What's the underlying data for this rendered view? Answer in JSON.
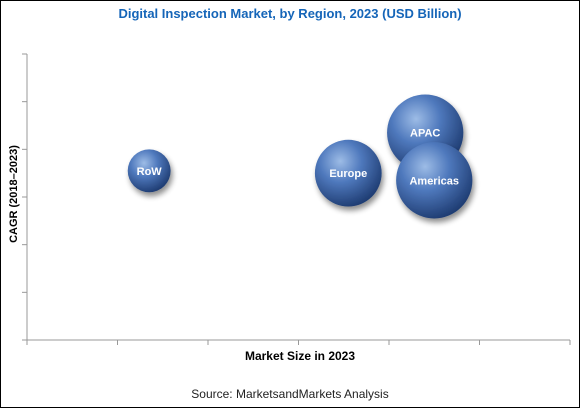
{
  "chart_data": {
    "type": "bubble",
    "title": "Digital Inspection Market, by Region, 2023 (USD Billion)",
    "xlabel": "Market Size in 2023",
    "ylabel": "CAGR (2018–2023)",
    "xlim": [
      0,
      6
    ],
    "ylim": [
      0,
      6
    ],
    "grid": false,
    "series": [
      {
        "name": "RoW",
        "x": 1.35,
        "y": 3.55,
        "size": 0.45
      },
      {
        "name": "Europe",
        "x": 3.55,
        "y": 3.5,
        "size": 0.7
      },
      {
        "name": "APAC",
        "x": 4.4,
        "y": 4.35,
        "size": 0.8
      },
      {
        "name": "Americas",
        "x": 4.5,
        "y": 3.35,
        "size": 0.8
      }
    ]
  },
  "source": "Source: MarketsandMarkets Analysis",
  "colors": {
    "title": "#1565b8",
    "bubble_light": "#8fb0df",
    "bubble_mid": "#4f79bd",
    "bubble_dark": "#1f3d73"
  }
}
